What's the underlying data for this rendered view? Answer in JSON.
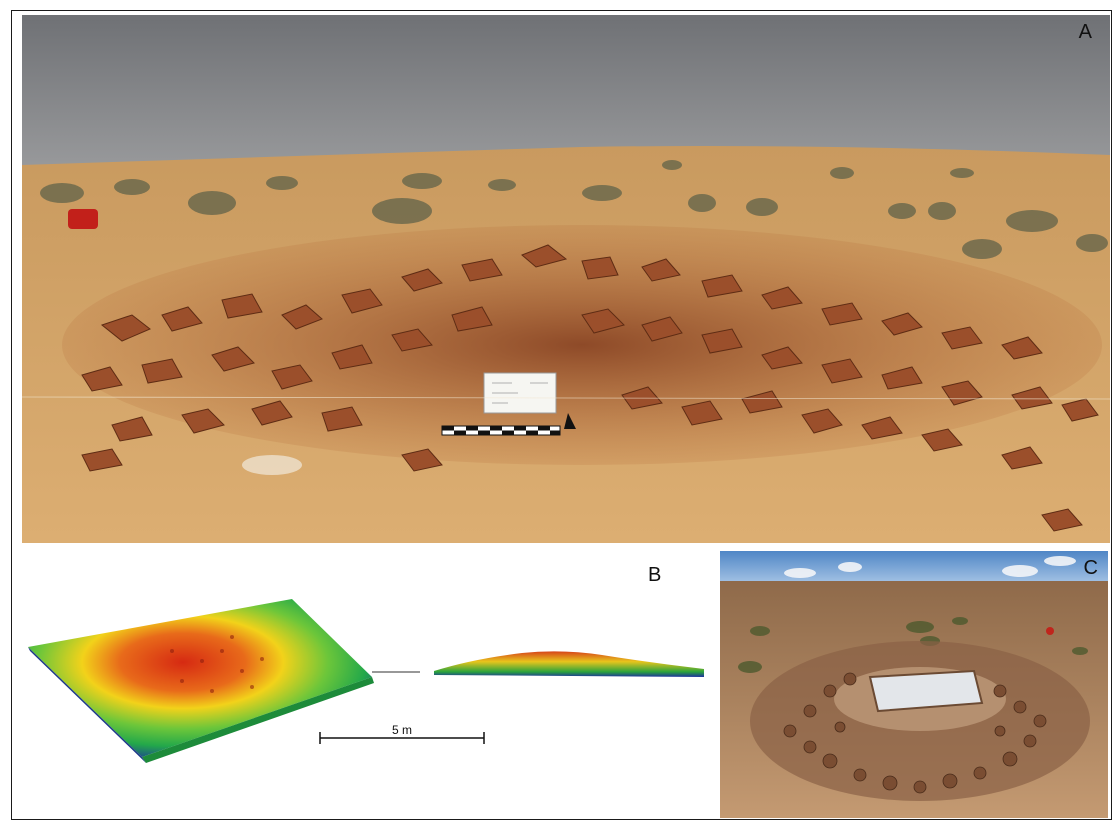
{
  "figure": {
    "panels": [
      {
        "id": "A",
        "label": "A",
        "content": "photo-stone-mound"
      },
      {
        "id": "B",
        "label": "B",
        "content": "3d-elevation-model"
      },
      {
        "id": "C",
        "label": "C",
        "content": "photo-excavated-structure"
      }
    ],
    "scale_bar": {
      "label": "5 m"
    },
    "colors": {
      "sky": "#7d7f83",
      "sand": "#d9a867",
      "stone": "#a0542d",
      "elevation_high": "#d62a12",
      "elevation_mid": "#f2d21a",
      "elevation_low": "#2aa33c",
      "elevation_base": "#1c2fa0"
    }
  }
}
